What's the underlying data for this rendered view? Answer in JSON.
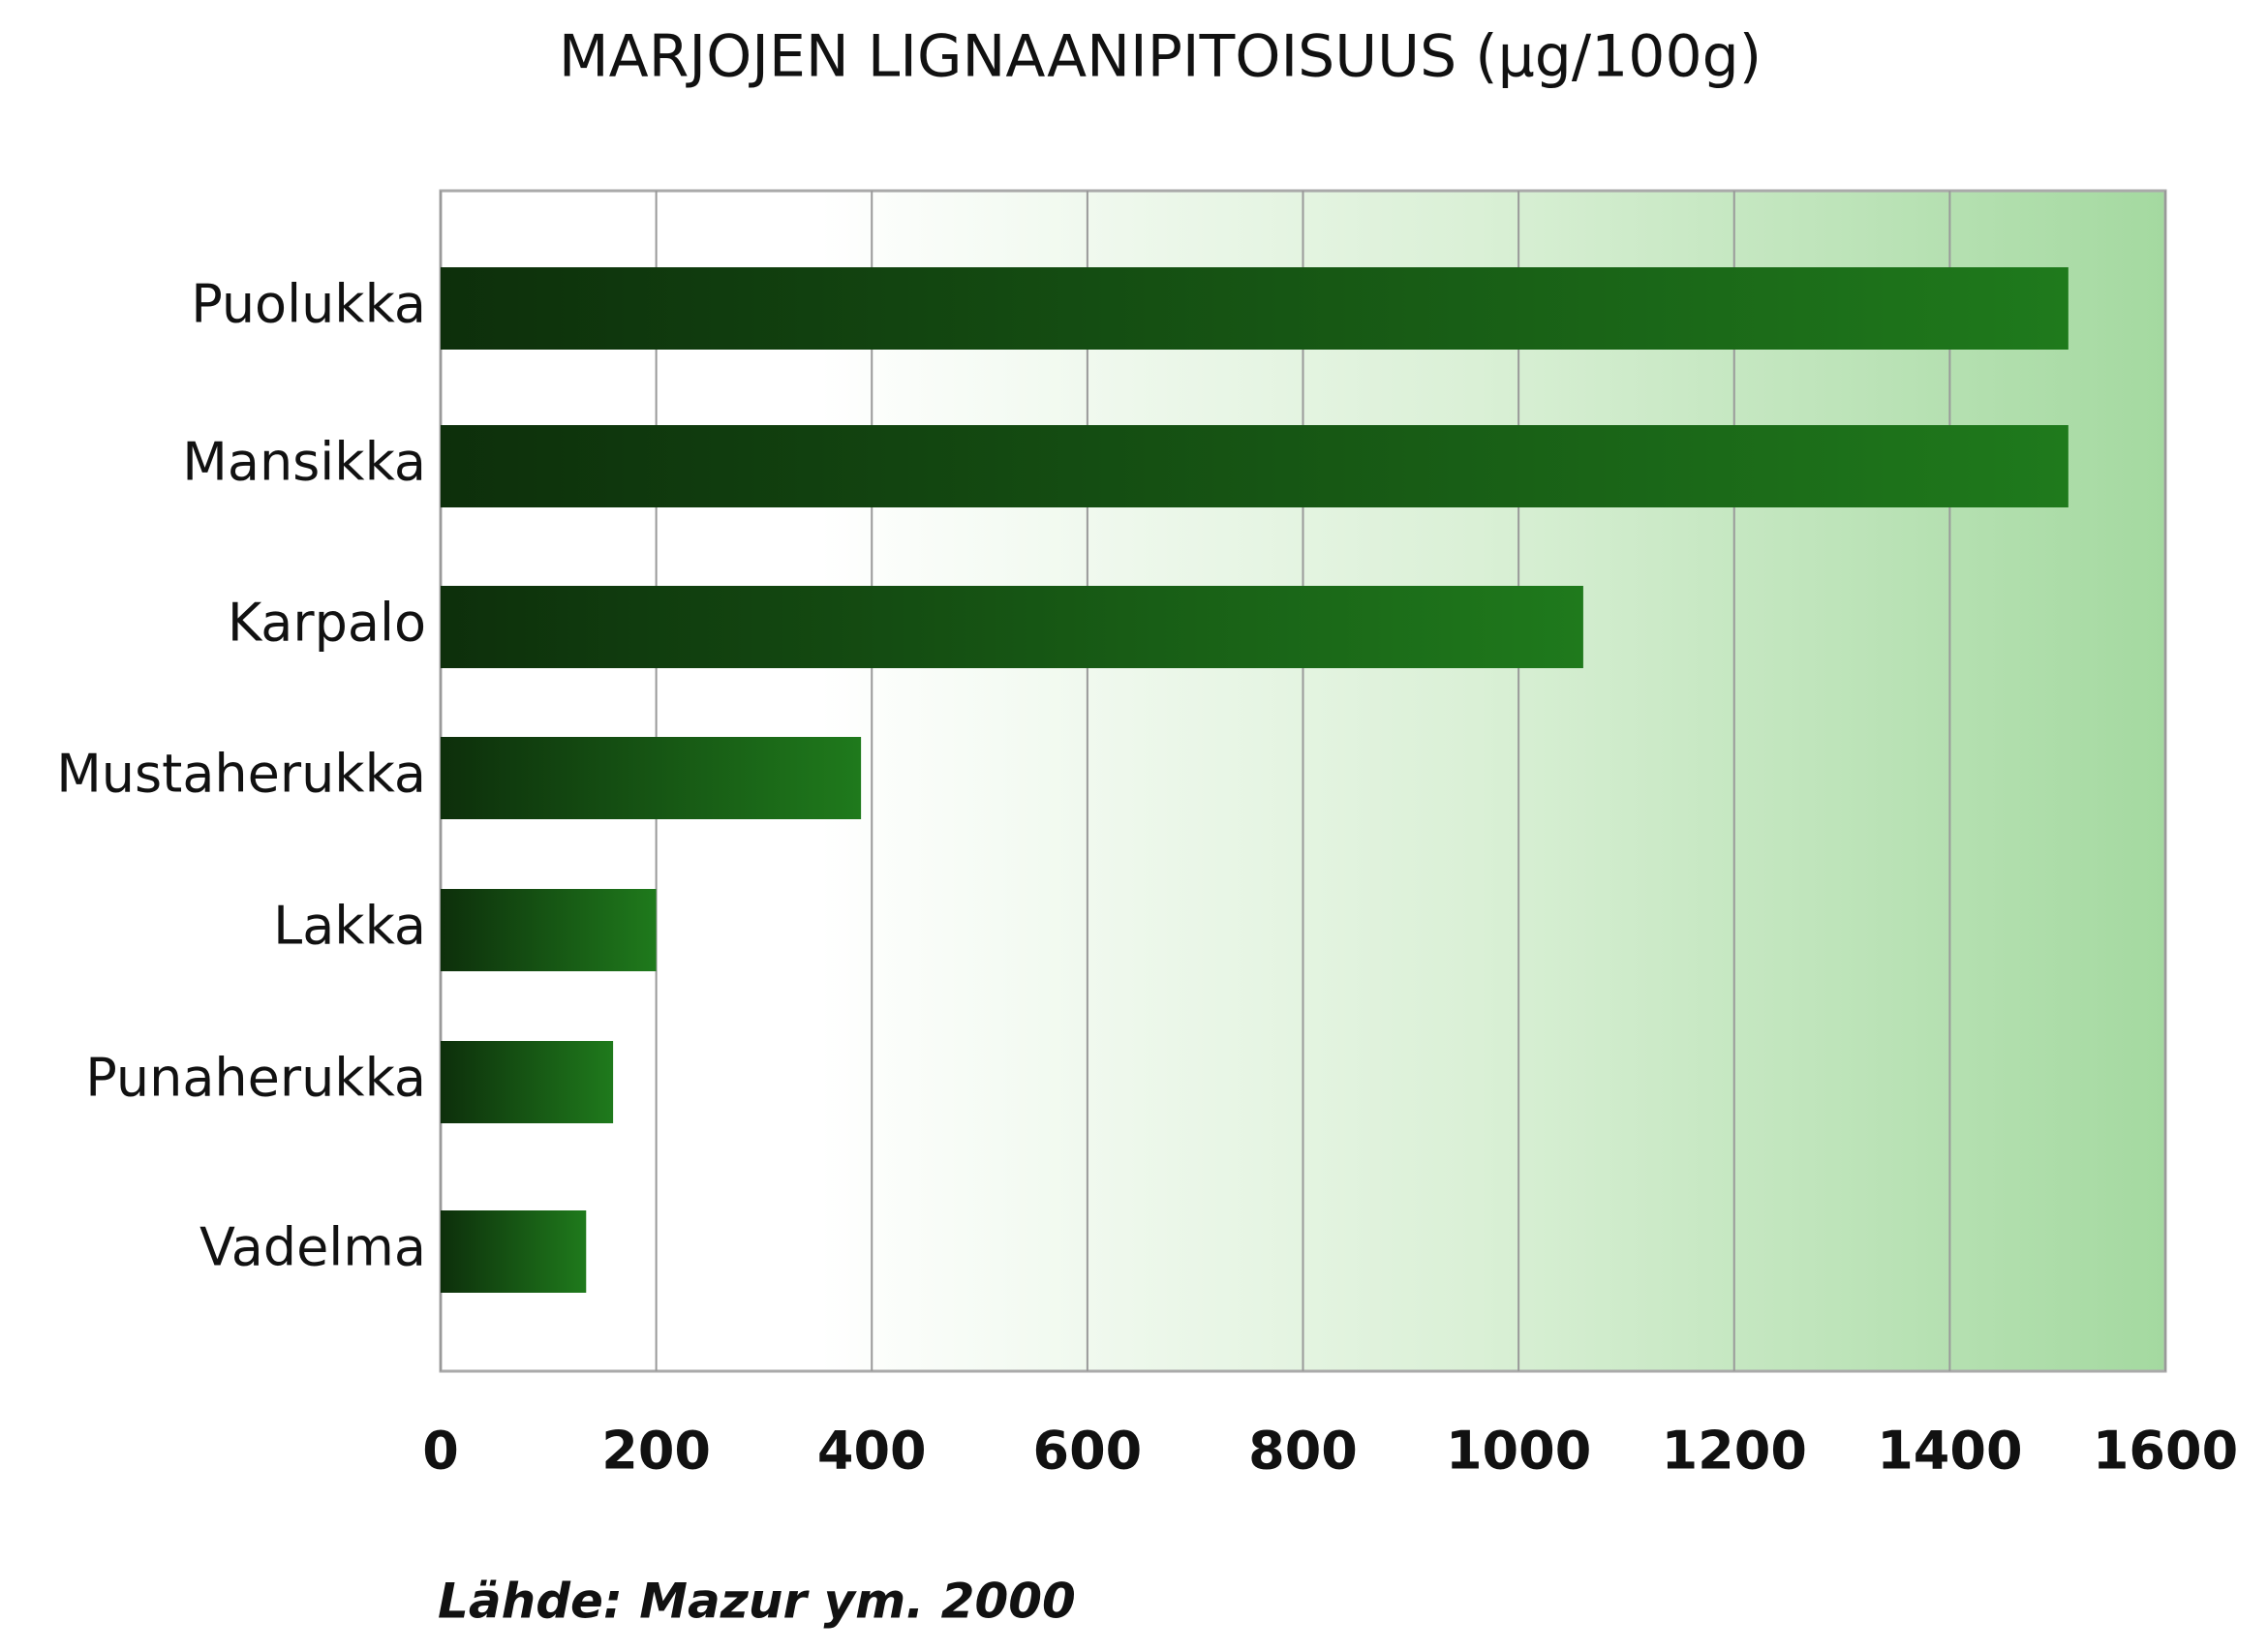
{
  "chart_data": {
    "type": "bar",
    "orientation": "horizontal",
    "title": "MARJOJEN LIGNAANIPITOISUUS (µg/100g)",
    "categories": [
      "Puolukka",
      "Mansikka",
      "Karpalo",
      "Mustaherukka",
      "Lakka",
      "Punaherukka",
      "Vadelma"
    ],
    "values": [
      1510,
      1510,
      1060,
      390,
      200,
      160,
      135
    ],
    "color": "#1f7a1c",
    "xlim": [
      0,
      1600
    ],
    "xticks": [
      0,
      200,
      400,
      600,
      800,
      1000,
      1200,
      1400,
      1600
    ],
    "grid": true,
    "source": "Lähde: Mazur ym. 2000"
  }
}
